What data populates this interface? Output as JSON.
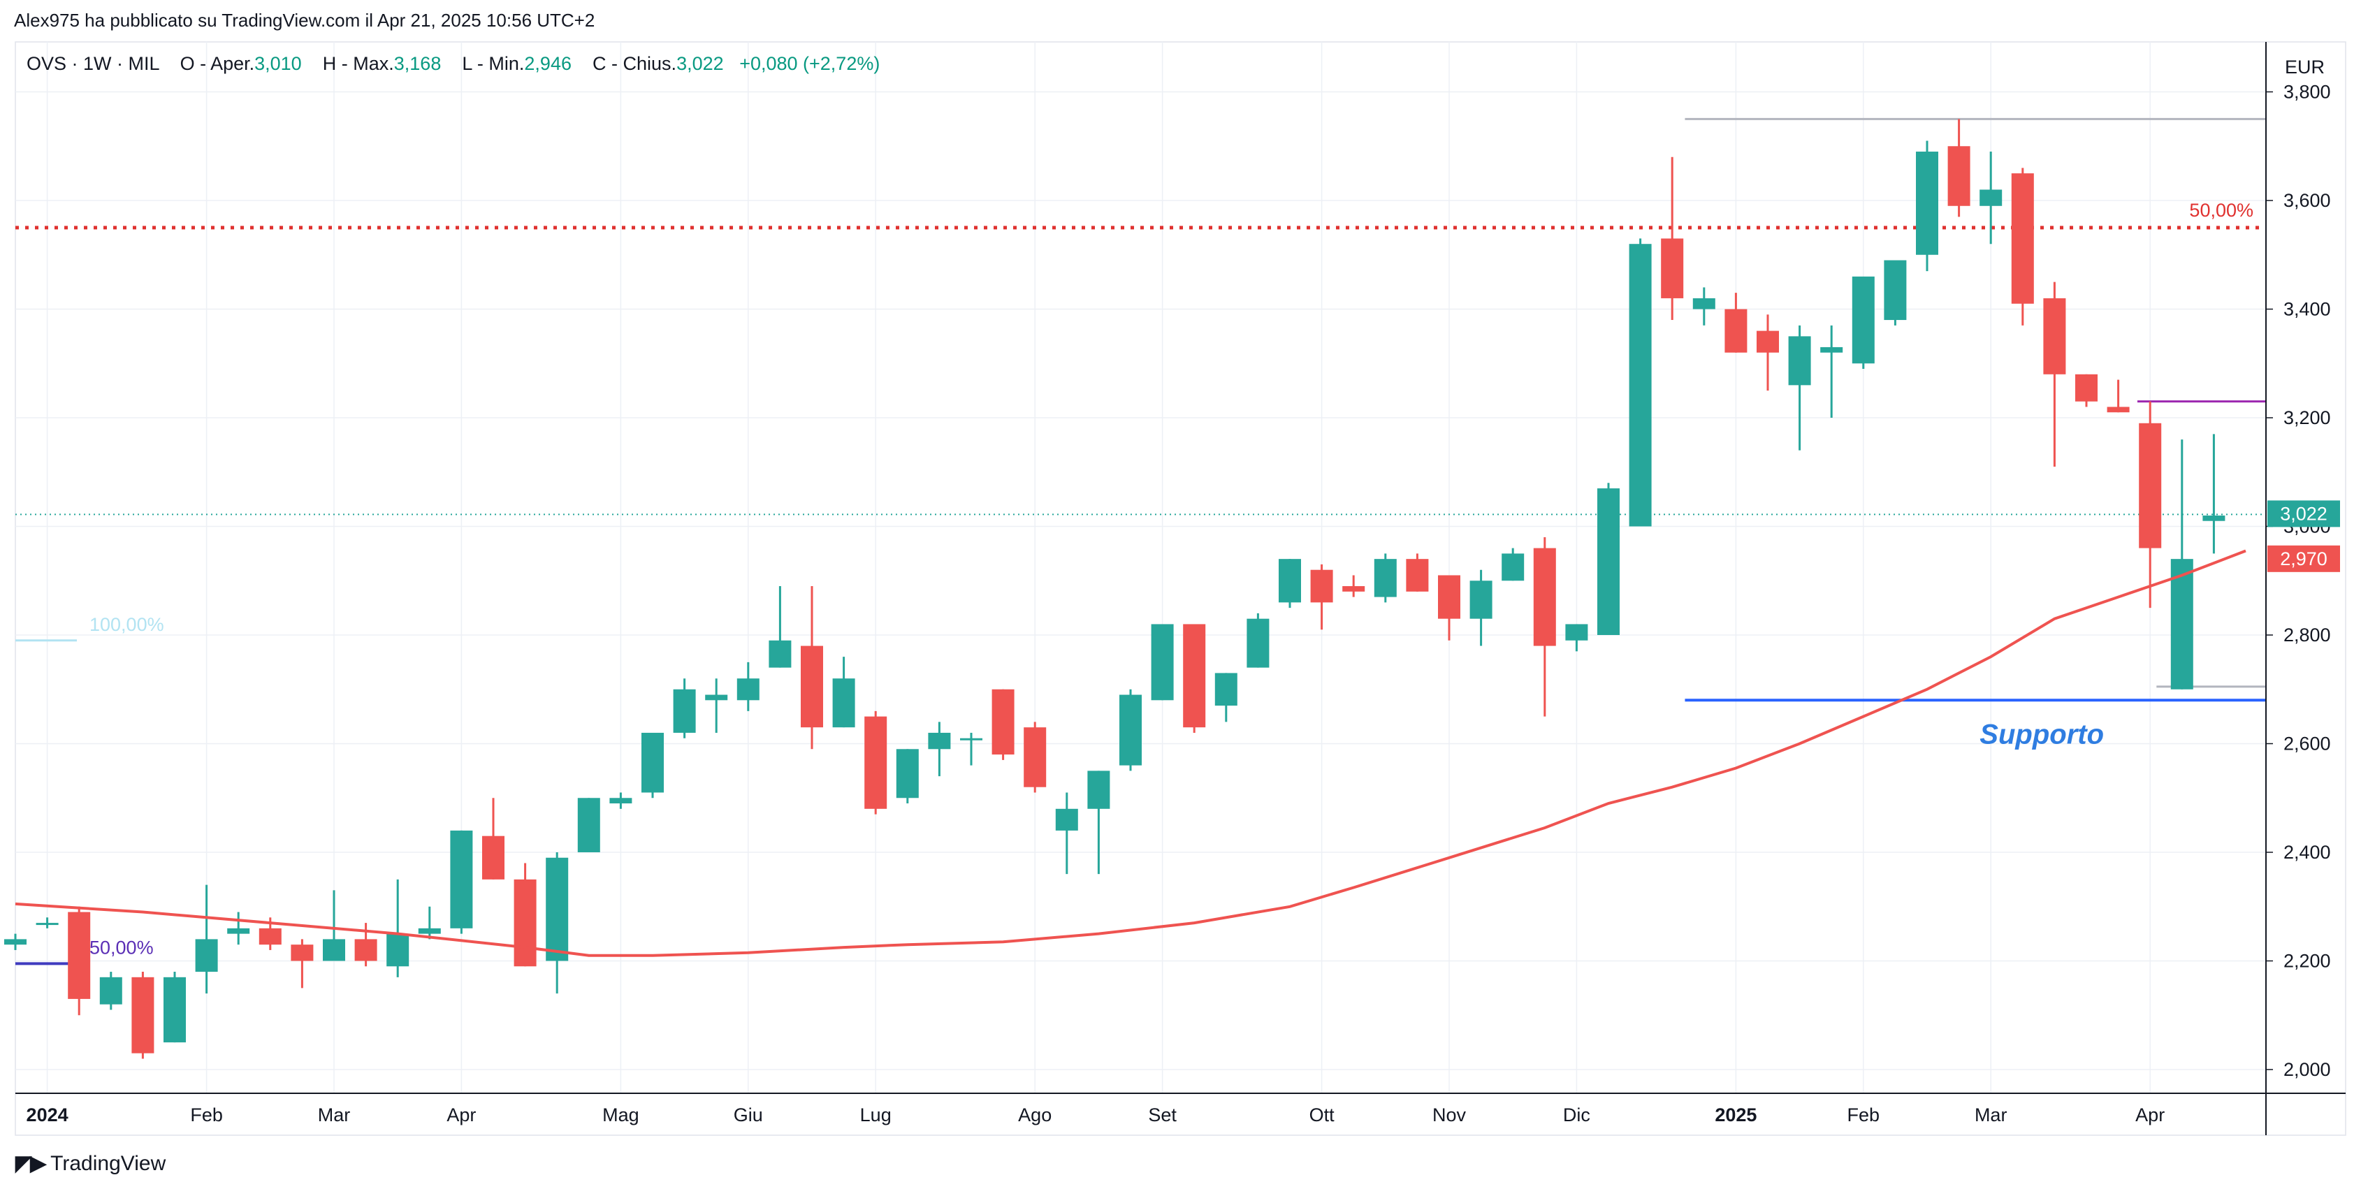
{
  "header": {
    "published_by": "Alex975 ha pubblicato su TradingView.com il Apr 21, 2025 10:56 UTC+2"
  },
  "legend": {
    "symbol": "OVS · 1W · MIL",
    "open_label": "O - Aper.",
    "open": "3,010",
    "high_label": "H - Max.",
    "high": "3,168",
    "low_label": "L - Min.",
    "low": "2,946",
    "close_label": "C - Chius.",
    "close": "3,022",
    "change": "+0,080 (+2,72%)"
  },
  "currency": "EUR",
  "footer": {
    "brand": "TradingView"
  },
  "colors": {
    "up": "#26a69a",
    "down": "#ef5350",
    "ma": "#ef5350",
    "support": "#2962ff",
    "fib": "#e0312f",
    "magenta": "#9c27b0",
    "label_up": "#26a69a",
    "label_ma": "#ef5350"
  },
  "chart_data": {
    "type": "candlestick",
    "y_ticks": [
      "3,800",
      "3,600",
      "3,400",
      "3,200",
      "3,000",
      "2,800",
      "2,600",
      "2,400",
      "2,200",
      "2,000"
    ],
    "ylim": [
      1.96,
      3.82
    ],
    "x_labels": [
      {
        "label": "2024",
        "week": 1,
        "bold": true
      },
      {
        "label": "Feb",
        "week": 6
      },
      {
        "label": "Mar",
        "week": 10
      },
      {
        "label": "Apr",
        "week": 14
      },
      {
        "label": "Mag",
        "week": 19
      },
      {
        "label": "Giu",
        "week": 23
      },
      {
        "label": "Lug",
        "week": 27
      },
      {
        "label": "Ago",
        "week": 32
      },
      {
        "label": "Set",
        "week": 36
      },
      {
        "label": "Ott",
        "week": 41
      },
      {
        "label": "Nov",
        "week": 45
      },
      {
        "label": "Dic",
        "week": 49
      },
      {
        "label": "2025",
        "week": 54,
        "bold": true
      },
      {
        "label": "Feb",
        "week": 58
      },
      {
        "label": "Mar",
        "week": 62
      },
      {
        "label": "Apr",
        "week": 67
      }
    ],
    "candles": [
      [
        2.23,
        2.25,
        2.22,
        2.24
      ],
      [
        2.27,
        2.28,
        2.26,
        2.27
      ],
      [
        2.29,
        2.3,
        2.1,
        2.13
      ],
      [
        2.12,
        2.18,
        2.11,
        2.17
      ],
      [
        2.17,
        2.18,
        2.02,
        2.03
      ],
      [
        2.05,
        2.18,
        2.05,
        2.17
      ],
      [
        2.18,
        2.34,
        2.14,
        2.24
      ],
      [
        2.25,
        2.29,
        2.23,
        2.26
      ],
      [
        2.26,
        2.28,
        2.22,
        2.23
      ],
      [
        2.23,
        2.24,
        2.15,
        2.2
      ],
      [
        2.2,
        2.33,
        2.2,
        2.24
      ],
      [
        2.24,
        2.27,
        2.19,
        2.2
      ],
      [
        2.19,
        2.35,
        2.17,
        2.25
      ],
      [
        2.25,
        2.3,
        2.24,
        2.26
      ],
      [
        2.26,
        2.44,
        2.25,
        2.44
      ],
      [
        2.43,
        2.5,
        2.35,
        2.35
      ],
      [
        2.35,
        2.38,
        2.19,
        2.19
      ],
      [
        2.2,
        2.4,
        2.14,
        2.39
      ],
      [
        2.4,
        2.5,
        2.4,
        2.5
      ],
      [
        2.49,
        2.51,
        2.48,
        2.5
      ],
      [
        2.51,
        2.62,
        2.5,
        2.62
      ],
      [
        2.62,
        2.72,
        2.61,
        2.7
      ],
      [
        2.68,
        2.72,
        2.62,
        2.69
      ],
      [
        2.68,
        2.75,
        2.66,
        2.72
      ],
      [
        2.74,
        2.89,
        2.74,
        2.79
      ],
      [
        2.78,
        2.89,
        2.59,
        2.63
      ],
      [
        2.63,
        2.76,
        2.63,
        2.72
      ],
      [
        2.65,
        2.66,
        2.47,
        2.48
      ],
      [
        2.5,
        2.59,
        2.49,
        2.59
      ],
      [
        2.59,
        2.64,
        2.54,
        2.62
      ],
      [
        2.61,
        2.62,
        2.56,
        2.61
      ],
      [
        2.7,
        2.7,
        2.57,
        2.58
      ],
      [
        2.63,
        2.64,
        2.51,
        2.52
      ],
      [
        2.44,
        2.51,
        2.36,
        2.48
      ],
      [
        2.48,
        2.55,
        2.36,
        2.55
      ],
      [
        2.56,
        2.7,
        2.55,
        2.69
      ],
      [
        2.68,
        2.82,
        2.68,
        2.82
      ],
      [
        2.82,
        2.82,
        2.62,
        2.63
      ],
      [
        2.67,
        2.73,
        2.64,
        2.73
      ],
      [
        2.74,
        2.84,
        2.74,
        2.83
      ],
      [
        2.86,
        2.94,
        2.85,
        2.94
      ],
      [
        2.92,
        2.93,
        2.81,
        2.86
      ],
      [
        2.89,
        2.91,
        2.87,
        2.88
      ],
      [
        2.87,
        2.95,
        2.86,
        2.94
      ],
      [
        2.94,
        2.95,
        2.88,
        2.88
      ],
      [
        2.91,
        2.91,
        2.79,
        2.83
      ],
      [
        2.83,
        2.92,
        2.78,
        2.9
      ],
      [
        2.9,
        2.96,
        2.9,
        2.95
      ],
      [
        2.96,
        2.98,
        2.65,
        2.78
      ],
      [
        2.79,
        2.82,
        2.77,
        2.82
      ],
      [
        2.8,
        3.08,
        2.8,
        3.07
      ],
      [
        3.0,
        3.53,
        3.0,
        3.52
      ],
      [
        3.53,
        3.68,
        3.38,
        3.42
      ],
      [
        3.4,
        3.44,
        3.37,
        3.42
      ],
      [
        3.4,
        3.43,
        3.32,
        3.32
      ],
      [
        3.36,
        3.39,
        3.25,
        3.32
      ],
      [
        3.26,
        3.37,
        3.14,
        3.35
      ],
      [
        3.32,
        3.37,
        3.2,
        3.33
      ],
      [
        3.3,
        3.45,
        3.29,
        3.46
      ],
      [
        3.38,
        3.48,
        3.37,
        3.49
      ],
      [
        3.5,
        3.71,
        3.47,
        3.69
      ],
      [
        3.7,
        3.75,
        3.57,
        3.59
      ],
      [
        3.59,
        3.69,
        3.52,
        3.62
      ],
      [
        3.65,
        3.66,
        3.37,
        3.41
      ],
      [
        3.42,
        3.45,
        3.11,
        3.28
      ],
      [
        3.28,
        3.28,
        3.22,
        3.23
      ],
      [
        3.22,
        3.27,
        3.21,
        3.21
      ],
      [
        3.19,
        3.23,
        2.85,
        2.96
      ],
      [
        2.7,
        3.16,
        2.7,
        2.94
      ],
      [
        3.01,
        3.17,
        2.95,
        3.02
      ]
    ],
    "moving_average": [
      [
        0,
        2.305
      ],
      [
        4,
        2.29
      ],
      [
        8,
        2.27
      ],
      [
        12,
        2.25
      ],
      [
        16,
        2.225
      ],
      [
        18,
        2.21
      ],
      [
        20,
        2.21
      ],
      [
        23,
        2.215
      ],
      [
        26,
        2.225
      ],
      [
        28,
        2.23
      ],
      [
        31,
        2.235
      ],
      [
        34,
        2.25
      ],
      [
        37,
        2.27
      ],
      [
        40,
        2.3
      ],
      [
        42,
        2.335
      ],
      [
        45,
        2.39
      ],
      [
        48,
        2.445
      ],
      [
        50,
        2.49
      ],
      [
        52,
        2.52
      ],
      [
        54,
        2.555
      ],
      [
        56,
        2.6
      ],
      [
        58,
        2.65
      ],
      [
        60,
        2.7
      ],
      [
        62,
        2.76
      ],
      [
        64,
        2.83
      ],
      [
        66,
        2.87
      ],
      [
        68,
        2.91
      ],
      [
        70,
        2.955
      ]
    ],
    "lines": [
      {
        "name": "fib-50-top",
        "y": 3.55,
        "label": "50,00%"
      },
      {
        "name": "resistance-top",
        "y": 3.75
      },
      {
        "name": "magenta-level",
        "y": 3.23
      },
      {
        "name": "support",
        "y": 2.68,
        "label": "Supporto"
      },
      {
        "name": "low-level",
        "y": 2.705
      },
      {
        "name": "fib-100",
        "y": 2.79,
        "label": "100,00%"
      },
      {
        "name": "fib-50-bottom",
        "y": 2.195,
        "label": "50,00%"
      }
    ],
    "price_labels": [
      {
        "name": "last-price",
        "value": "3,022",
        "y": 3.022
      },
      {
        "name": "ma-value",
        "value": "2,970",
        "y": 2.97
      }
    ]
  }
}
